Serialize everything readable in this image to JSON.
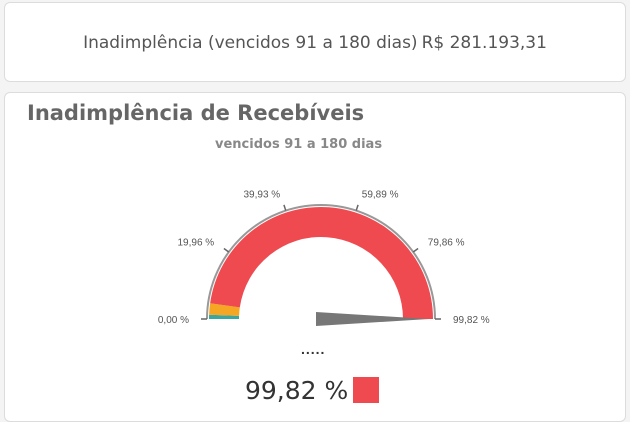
{
  "kpi": {
    "label": "Inadimplência (vencidos 91 a 180 dias)",
    "value": "R$ 281.193,31"
  },
  "chart": {
    "title": "Inadimplência de Recebíveis",
    "subtitle": "vencidos 91 a 180 dias",
    "value_text": "99,82 %",
    "dots": "....."
  },
  "colors": {
    "main": "#ef4a4f",
    "band_orange": "#f5a623",
    "band_teal": "#3aa6a0",
    "needle": "#777777",
    "axis": "#999999"
  },
  "chart_data": {
    "type": "gauge",
    "min": 0,
    "max": 99.82,
    "value": 99.82,
    "value_label": "99,82 %",
    "ticks": [
      {
        "value": 0,
        "label": "0,00 %"
      },
      {
        "value": 19.96,
        "label": "19,96 %"
      },
      {
        "value": 39.93,
        "label": "39,93 %"
      },
      {
        "value": 59.89,
        "label": "59,89 %"
      },
      {
        "value": 79.86,
        "label": "79,86 %"
      },
      {
        "value": 99.82,
        "label": "99,82 %"
      }
    ],
    "bands": [
      {
        "from": 0,
        "to": 1.2,
        "color": "#3aa6a0"
      },
      {
        "from": 1.2,
        "to": 4.5,
        "color": "#f5a623"
      },
      {
        "from": 4.5,
        "to": 99.82,
        "color": "#ef4a4f"
      }
    ]
  }
}
